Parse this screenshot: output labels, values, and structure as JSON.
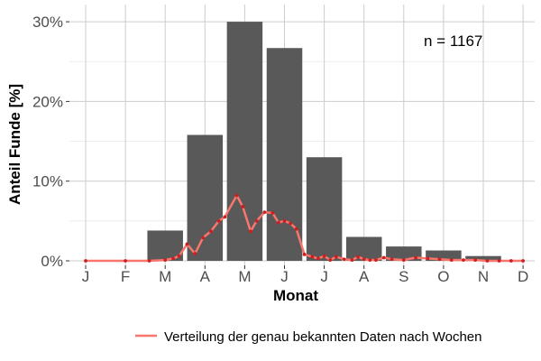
{
  "chart_data": {
    "type": "bar",
    "title": "",
    "xlabel": "Monat",
    "ylabel": "Anteil Funde [%]",
    "categories": [
      "J",
      "F",
      "M",
      "A",
      "M",
      "J",
      "J",
      "A",
      "S",
      "O",
      "N",
      "D"
    ],
    "values": [
      0,
      0,
      3.8,
      15.8,
      30.0,
      26.7,
      13.0,
      3.0,
      1.8,
      1.3,
      0.6,
      0
    ],
    "ylim": [
      0,
      30
    ],
    "yticks": [
      0,
      10,
      20,
      30
    ],
    "ytick_labels": [
      "0%",
      "10%",
      "20%",
      "30%"
    ],
    "grid": true,
    "annotation": "n = 1167",
    "line_series": {
      "name": "Verteilung der genau bekannten Daten nach Wochen",
      "color": "#f8766d",
      "x_months": [
        0,
        1.0,
        1.6,
        2.0,
        2.2,
        2.35,
        2.55,
        2.75,
        2.95,
        3.15,
        3.35,
        3.5,
        3.8,
        3.95,
        4.15,
        4.3,
        4.5,
        4.7,
        4.85,
        5.0,
        5.15,
        5.3,
        5.5,
        5.7,
        5.85,
        6.0,
        6.15,
        6.3,
        6.5,
        6.7,
        6.85,
        7.0,
        7.15,
        7.3,
        7.5,
        7.7,
        8.0,
        8.3,
        8.6,
        8.9,
        9.2,
        9.5,
        9.8,
        10.1,
        10.4,
        10.7,
        11.0
      ],
      "values": [
        0,
        0,
        0,
        0.1,
        0.3,
        0.6,
        2.1,
        0.9,
        2.9,
        3.7,
        5.0,
        5.5,
        8.2,
        6.8,
        3.7,
        5.0,
        6.1,
        6.0,
        4.8,
        5.0,
        4.7,
        4.0,
        0.8,
        0.5,
        0.3,
        0.6,
        0.1,
        0.5,
        0.2,
        0.1,
        0.5,
        0.2,
        0.1,
        0.1,
        0.4,
        0.2,
        0.1,
        0.4,
        0.3,
        0.2,
        0.1,
        0.1,
        0.1,
        0,
        0,
        0,
        0
      ]
    },
    "colors": {
      "bar": "#595959",
      "grid": "#cccccc",
      "line": "#f8766d",
      "background": "#ffffff"
    }
  }
}
